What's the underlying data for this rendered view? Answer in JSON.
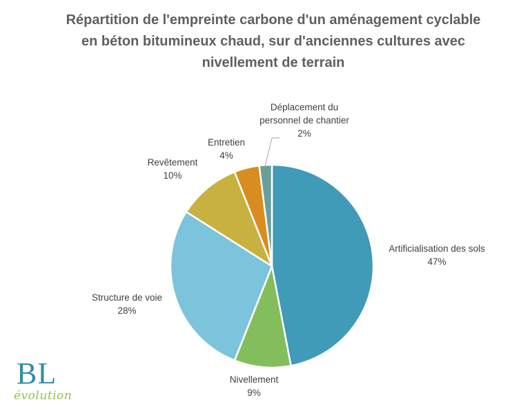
{
  "chart_data": {
    "type": "pie",
    "title_lines": [
      "Répartition de l'empreinte carbone d'un aménagement cyclable",
      "en béton bitumineux chaud,  sur d'anciennes cultures avec",
      "nivellement de terrain"
    ],
    "slices": [
      {
        "name": "Artificialisation des sols",
        "value": 47,
        "label": "47%",
        "color": "#3f9bb8"
      },
      {
        "name": "Nivellement",
        "value": 9,
        "label": "9%",
        "color": "#84bd5b"
      },
      {
        "name": "Structure de voie",
        "value": 28,
        "label": "28%",
        "color": "#7cc3dc"
      },
      {
        "name": "Revêtement",
        "value": 10,
        "label": "10%",
        "color": "#c8b140"
      },
      {
        "name": "Entretien",
        "value": 4,
        "label": "4%",
        "color": "#d98c1f"
      },
      {
        "name": "Déplacement du personnel de chantier",
        "name_lines": [
          "Déplacement du",
          "personnel de chantier"
        ],
        "value": 2,
        "label": "2%",
        "color": "#6a9e9a"
      }
    ]
  },
  "logo": {
    "main": "BL",
    "sub": "évolution"
  }
}
